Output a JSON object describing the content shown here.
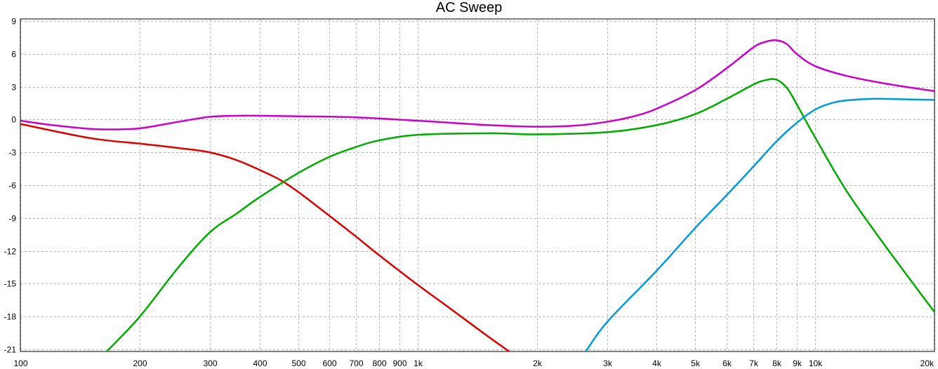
{
  "chart_data": {
    "type": "line",
    "title": "AC Sweep",
    "xlabel": "",
    "ylabel": "",
    "x_scale": "log",
    "xlim": [
      100,
      20000
    ],
    "ylim": [
      -21.2,
      9.2
    ],
    "grid": true,
    "legend": "none",
    "x_ticks": [
      100,
      200,
      300,
      400,
      500,
      600,
      700,
      800,
      900,
      1000,
      2000,
      3000,
      4000,
      5000,
      6000,
      7000,
      8000,
      9000,
      10000,
      20000
    ],
    "x_tick_labels": [
      "100",
      "200",
      "300",
      "400",
      "500",
      "600",
      "700",
      "800",
      "900",
      "1k",
      "2k",
      "3k",
      "4k",
      "5k",
      "6k",
      "7k",
      "8k",
      "9k",
      "10k",
      "20k"
    ],
    "y_ticks": [
      9,
      6,
      3,
      0,
      -3,
      -6,
      -9,
      -12,
      -15,
      -18,
      -21
    ],
    "y_tick_labels": [
      "9",
      "6",
      "3",
      "0",
      "-3",
      "-6",
      "-9",
      "-12",
      "-15",
      "-18",
      "-21"
    ],
    "series": [
      {
        "color": "#cc00cc",
        "x": [
          100,
          120,
          150,
          170,
          200,
          250,
          300,
          350,
          400,
          500,
          700,
          1000,
          1500,
          2000,
          2500,
          3000,
          3500,
          4000,
          5000,
          6000,
          7000,
          7500,
          8000,
          8500,
          9000,
          10000,
          12000,
          15000,
          20000
        ],
        "y": [
          -0.1,
          -0.5,
          -0.85,
          -0.9,
          -0.8,
          -0.2,
          0.25,
          0.35,
          0.35,
          0.3,
          0.2,
          -0.1,
          -0.5,
          -0.65,
          -0.55,
          -0.2,
          0.3,
          1.0,
          2.7,
          4.7,
          6.6,
          7.1,
          7.25,
          6.9,
          6.0,
          4.9,
          4.0,
          3.3,
          2.6
        ]
      },
      {
        "color": "#dd0000",
        "x": [
          100,
          150,
          200,
          250,
          300,
          350,
          400,
          450,
          500,
          600,
          700,
          800,
          1000,
          1200,
          1500,
          1700
        ],
        "y": [
          -0.4,
          -1.7,
          -2.2,
          -2.6,
          -3.0,
          -3.7,
          -4.6,
          -5.5,
          -6.6,
          -8.8,
          -10.7,
          -12.4,
          -15.1,
          -17.2,
          -19.8,
          -21.2
        ]
      },
      {
        "color": "#00aa00",
        "x": [
          165,
          200,
          250,
          300,
          350,
          400,
          500,
          600,
          700,
          800,
          1000,
          1500,
          2000,
          3000,
          4000,
          5000,
          6000,
          7000,
          7500,
          8000,
          8500,
          9000,
          10000,
          12000,
          15000,
          20000
        ],
        "y": [
          -21.2,
          -18.0,
          -13.5,
          -10.3,
          -8.6,
          -7.1,
          -4.9,
          -3.4,
          -2.5,
          -1.9,
          -1.4,
          -1.25,
          -1.35,
          -1.15,
          -0.5,
          0.5,
          1.9,
          3.2,
          3.6,
          3.65,
          2.9,
          1.4,
          -1.6,
          -6.5,
          -11.5,
          -17.6
        ]
      },
      {
        "color": "#0099dd",
        "x": [
          2650,
          3000,
          4000,
          5000,
          6000,
          7000,
          8000,
          9000,
          10000,
          11000,
          12000,
          14000,
          17000,
          20000
        ],
        "y": [
          -21.2,
          -18.5,
          -13.8,
          -9.9,
          -6.9,
          -4.3,
          -2.0,
          -0.3,
          0.9,
          1.5,
          1.75,
          1.9,
          1.85,
          1.8
        ]
      }
    ]
  }
}
